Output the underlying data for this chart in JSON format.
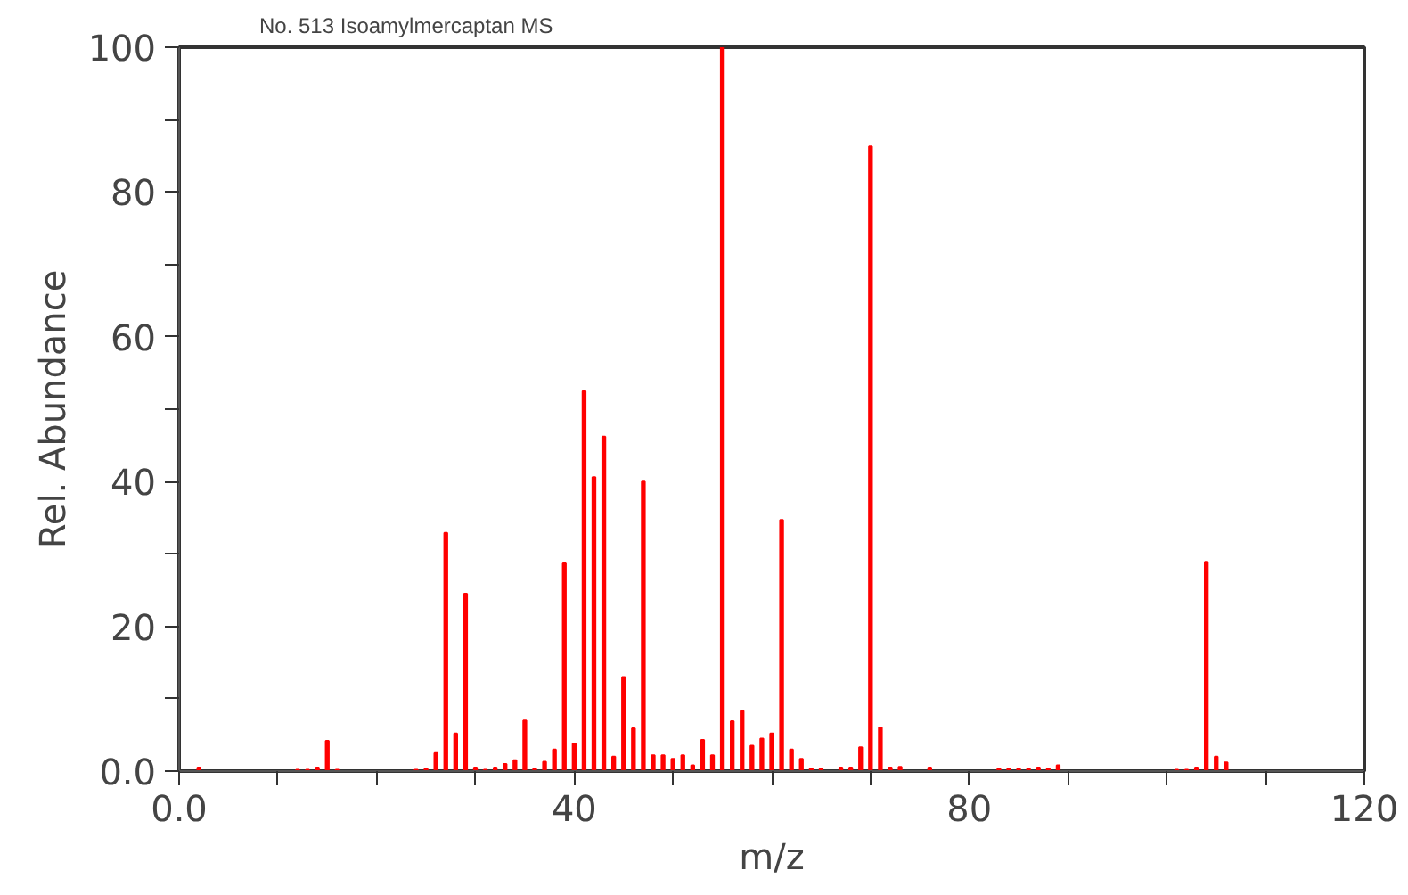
{
  "chart_data": {
    "type": "bar",
    "title": "No. 513 Isoamylmercaptan MS",
    "xlabel": "m/z",
    "ylabel": "Rel. Abundance",
    "x": [
      2,
      12,
      13,
      14,
      15,
      16,
      24,
      25,
      26,
      27,
      28,
      29,
      30,
      31,
      32,
      33,
      34,
      35,
      36,
      37,
      38,
      39,
      40,
      41,
      42,
      43,
      44,
      45,
      46,
      47,
      48,
      49,
      50,
      51,
      52,
      53,
      54,
      55,
      56,
      57,
      58,
      59,
      60,
      61,
      62,
      63,
      64,
      65,
      67,
      68,
      69,
      70,
      71,
      72,
      73,
      76,
      83,
      84,
      85,
      86,
      87,
      88,
      89,
      101,
      102,
      103,
      104,
      105,
      106
    ],
    "values": [
      0.5,
      0.2,
      0.2,
      0.5,
      4.2,
      0.2,
      0.2,
      0.3,
      2.5,
      32.9,
      5.2,
      24.5,
      0.5,
      0.2,
      0.5,
      1,
      1.5,
      7,
      0.3,
      1.3,
      3,
      28.7,
      3.8,
      52.5,
      40.6,
      46.2,
      2,
      13,
      5.9,
      40,
      2.2,
      2.2,
      1.7,
      2.2,
      0.8,
      4.3,
      2.2,
      100,
      6.9,
      8.3,
      3.5,
      4.5,
      5.2,
      34.7,
      3,
      1.7,
      0.3,
      0.3,
      0.5,
      0.5,
      3.3,
      86.3,
      6,
      0.5,
      0.6,
      0.5,
      0.3,
      0.3,
      0.3,
      0.3,
      0.5,
      0.3,
      0.8,
      0.2,
      0.2,
      0.5,
      28.9,
      2,
      1.2
    ],
    "color": "#ff0000",
    "xlim": [
      0,
      120
    ],
    "xticks": [
      {
        "value": 0,
        "label": "0.0"
      },
      {
        "value": 10,
        "label": null
      },
      {
        "value": 20,
        "label": null
      },
      {
        "value": 30,
        "label": null
      },
      40,
      {
        "value": 50,
        "label": null
      },
      {
        "value": 60,
        "label": null
      },
      {
        "value": 70,
        "label": null
      },
      80,
      {
        "value": 90,
        "label": null
      },
      {
        "value": 100,
        "label": null
      },
      {
        "value": 110,
        "label": null
      },
      120
    ],
    "ylim": [
      0,
      100
    ],
    "yticks": [
      {
        "value": 0,
        "label": "0.0"
      },
      {
        "value": 10,
        "label": null
      },
      20,
      {
        "value": 30,
        "label": null
      },
      40,
      {
        "value": 50,
        "label": null
      },
      60,
      {
        "value": 70,
        "label": null
      },
      80,
      {
        "value": 90,
        "label": null
      },
      100
    ],
    "grid": false
  }
}
